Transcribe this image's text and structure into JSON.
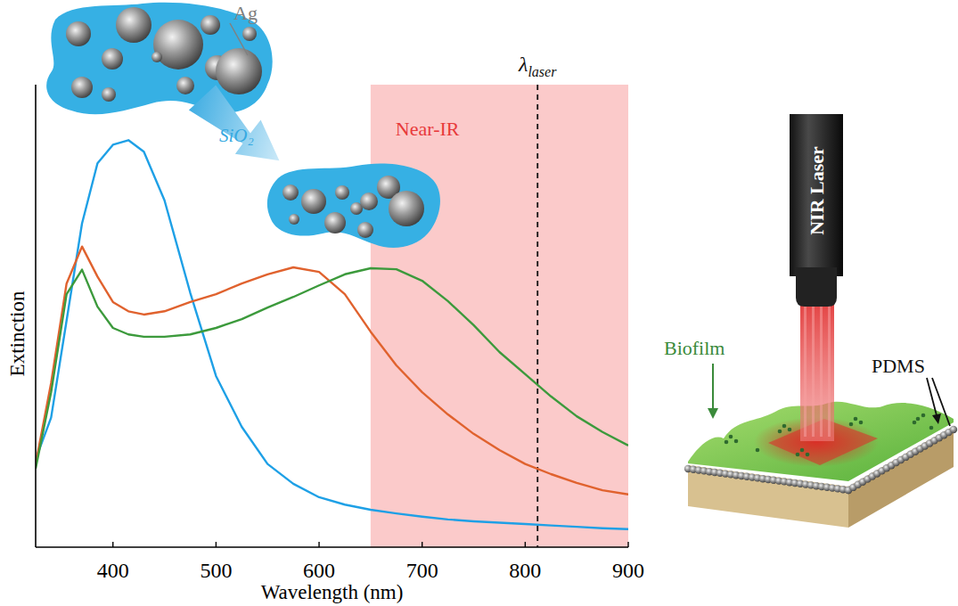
{
  "chart_data": {
    "type": "line",
    "x_label": "Wavelength (nm)",
    "y_label": "Extinction",
    "x": [
      325,
      340,
      355,
      370,
      385,
      400,
      415,
      430,
      450,
      475,
      500,
      525,
      550,
      575,
      600,
      625,
      650,
      675,
      700,
      725,
      750,
      775,
      800,
      825,
      850,
      875,
      900
    ],
    "series": [
      {
        "color": "#1ea0e6",
        "values": [
          0.19,
          0.28,
          0.49,
          0.7,
          0.83,
          0.87,
          0.88,
          0.855,
          0.75,
          0.55,
          0.37,
          0.26,
          0.18,
          0.137,
          0.108,
          0.092,
          0.081,
          0.073,
          0.066,
          0.06,
          0.056,
          0.053,
          0.05,
          0.047,
          0.044,
          0.041,
          0.039
        ]
      },
      {
        "color": "#e0622e",
        "values": [
          0.18,
          0.355,
          0.57,
          0.65,
          0.585,
          0.53,
          0.51,
          0.503,
          0.51,
          0.53,
          0.547,
          0.57,
          0.59,
          0.605,
          0.595,
          0.547,
          0.466,
          0.393,
          0.335,
          0.287,
          0.245,
          0.21,
          0.18,
          0.158,
          0.139,
          0.123,
          0.114
        ]
      },
      {
        "color": "#3c9a3c",
        "values": [
          0.17,
          0.335,
          0.547,
          0.6,
          0.52,
          0.474,
          0.46,
          0.455,
          0.455,
          0.46,
          0.474,
          0.493,
          0.518,
          0.541,
          0.566,
          0.59,
          0.603,
          0.601,
          0.576,
          0.532,
          0.48,
          0.422,
          0.374,
          0.326,
          0.283,
          0.249,
          0.22
        ]
      }
    ],
    "xlim": [
      325,
      900
    ],
    "ylim": [
      0,
      1
    ],
    "xticks": [
      400,
      500,
      600,
      700,
      800,
      900
    ],
    "yticks": [],
    "tick_labels": "x",
    "near_ir_label": "Near-IR",
    "near_ir_range": [
      650,
      900
    ],
    "laser_symbol": "λ",
    "laser_subscript": "laser",
    "laser_wavelength": 812
  },
  "illustration": {
    "ag": "Ag",
    "sio2": "SiO₂",
    "biofilm": "Biofilm",
    "pdms": "PDMS",
    "nir_laser": "NIR Laser"
  }
}
